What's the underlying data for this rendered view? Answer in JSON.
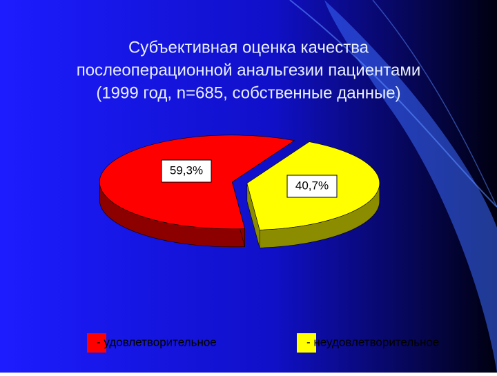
{
  "chart_data": {
    "type": "pie",
    "title": [
      "Субъективная оценка качества",
      "послеоперационной анальгезии пациентами",
      "(1999 год, n=685, собственные данные)"
    ],
    "categories": [
      "- удовлетворительное",
      "- неудовлетворительное"
    ],
    "values": [
      59.3,
      40.7
    ],
    "value_labels": [
      "59,3%",
      "40,7%"
    ],
    "colors": [
      "#ff0000",
      "#ffff00"
    ]
  }
}
